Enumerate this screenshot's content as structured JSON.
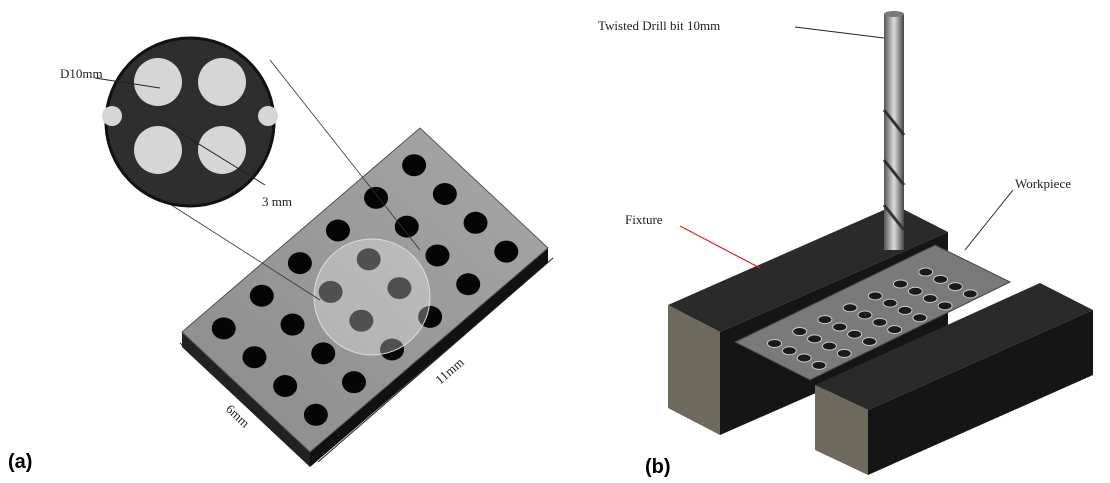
{
  "panels": [
    {
      "label": "(a)",
      "annotations": [
        "D10mm",
        "3 mm",
        "11mm",
        "6mm"
      ]
    },
    {
      "label": "(b)",
      "annotations": [
        "Twisted Drill bit 10mm",
        "Workpiece",
        "Fixture"
      ]
    }
  ]
}
